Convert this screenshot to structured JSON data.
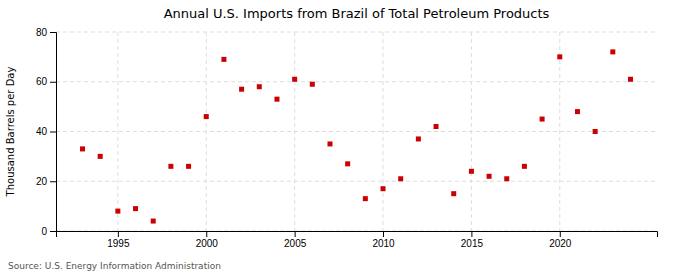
{
  "chart_data": {
    "type": "scatter",
    "title": "Annual U.S. Imports from Brazil of Total Petroleum Products",
    "ylabel": "Thousand Barrels per Day",
    "source": "Source: U.S. Energy Information Administration",
    "x": [
      1993,
      1994,
      1995,
      1996,
      1997,
      1998,
      1999,
      2000,
      2001,
      2002,
      2003,
      2004,
      2005,
      2006,
      2007,
      2008,
      2009,
      2010,
      2011,
      2012,
      2013,
      2014,
      2015,
      2016,
      2017,
      2018,
      2019,
      2020,
      2021,
      2022,
      2023,
      2024
    ],
    "values": [
      33,
      30,
      8,
      9,
      4,
      26,
      26,
      46,
      69,
      57,
      58,
      53,
      61,
      59,
      35,
      27,
      13,
      17,
      21,
      37,
      42,
      15,
      24,
      22,
      21,
      26,
      45,
      70,
      48,
      40,
      72,
      61
    ],
    "color": "#cc0000",
    "marker": "square",
    "xlim": [
      1991.5,
      2025.5
    ],
    "ylim": [
      0,
      80
    ],
    "xticks": [
      1995,
      2000,
      2005,
      2010,
      2015,
      2020
    ],
    "yticks": [
      0,
      20,
      40,
      60,
      80
    ],
    "grid": true
  }
}
